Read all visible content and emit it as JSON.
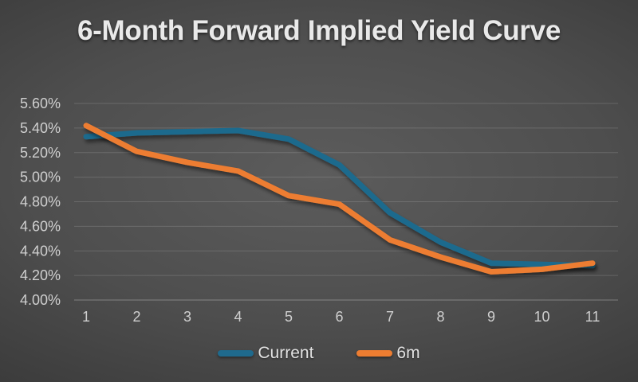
{
  "title": "6-Month Forward Implied Yield Curve",
  "chart_data": {
    "type": "line",
    "title": "6-Month Forward Implied Yield Curve",
    "categories": [
      "1",
      "2",
      "3",
      "4",
      "5",
      "6",
      "7",
      "8",
      "9",
      "10",
      "11"
    ],
    "series": [
      {
        "name": "Current",
        "color": "#1f6a8d",
        "values": [
          5.33,
          5.36,
          5.37,
          5.38,
          5.31,
          5.1,
          4.71,
          4.47,
          4.3,
          4.29,
          4.28
        ]
      },
      {
        "name": "6m",
        "color": "#ed7d31",
        "values": [
          5.42,
          5.21,
          5.12,
          5.05,
          4.85,
          4.78,
          4.49,
          4.35,
          4.23,
          4.25,
          4.3
        ]
      }
    ],
    "xlabel": "",
    "ylabel": "",
    "ylim": [
      4.0,
      5.6
    ],
    "ytick_step": 0.2,
    "ytick_labels": [
      "5.60%",
      "5.40%",
      "5.20%",
      "5.00%",
      "4.80%",
      "4.60%",
      "4.40%",
      "4.20%",
      "4.00%"
    ],
    "grid": true,
    "legend_position": "bottom"
  },
  "colors": {
    "background_center": "#5c5c5c",
    "background_edge": "#1d1d1d",
    "title_text": "#e9e9e9",
    "tick_text": "#cfcfcf",
    "gridline": "rgba(255,255,255,0.15)",
    "axis_line": "rgba(255,255,255,0.30)"
  }
}
